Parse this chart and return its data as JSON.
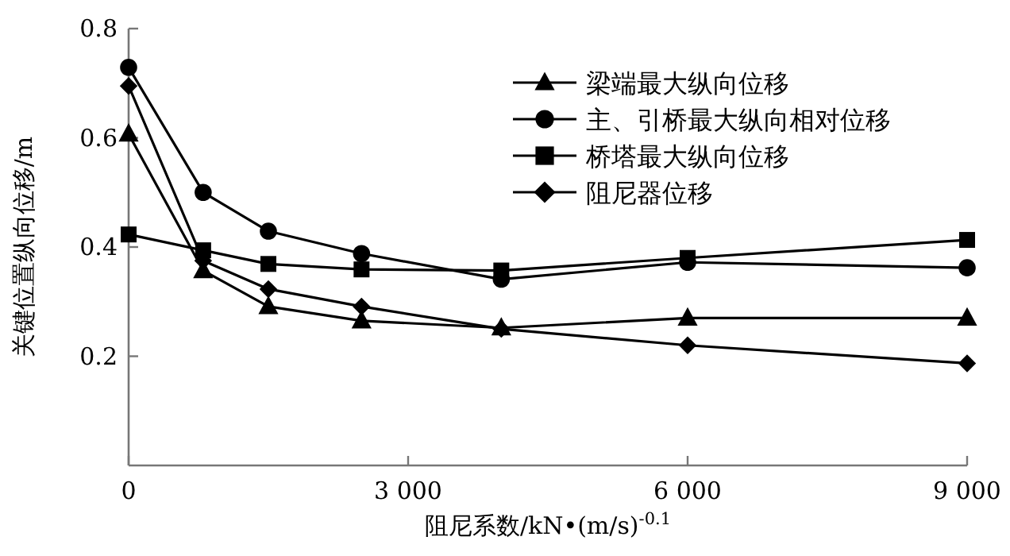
{
  "chart_data": {
    "type": "line",
    "xlabel": "阻尼系数/kN•(m/s)$^{-0.1}$",
    "ylabel": "关键位置纵向位移/m",
    "x": [
      0,
      800,
      1500,
      2500,
      4000,
      6000,
      9000
    ],
    "xlim": [
      0,
      9000
    ],
    "ylim": [
      0,
      0.8
    ],
    "xticks": [
      0,
      {
        "value": 3000,
        "label": "3 000"
      },
      {
        "value": 6000,
        "label": "6 000"
      },
      {
        "value": 9000,
        "label": "9 000"
      }
    ],
    "yticks": [
      0.2,
      0.4,
      0.6,
      0.8
    ],
    "legend": "top right",
    "grid": false,
    "line_style": "solid",
    "series": [
      {
        "name": "梁端最大纵向位移",
        "color": "#000000",
        "marker": "triangle",
        "values": [
          0.607,
          0.357,
          0.291,
          0.265,
          0.252,
          0.27,
          0.27
        ]
      },
      {
        "name": "主、引桥最大纵向相对位移",
        "color": "#000000",
        "marker": "circle",
        "values": [
          0.729,
          0.5,
          0.429,
          0.388,
          0.341,
          0.372,
          0.362
        ]
      },
      {
        "name": "桥塔最大纵向位移",
        "color": "#000000",
        "marker": "square",
        "values": [
          0.423,
          0.394,
          0.369,
          0.359,
          0.357,
          0.38,
          0.413
        ]
      },
      {
        "name": "阻尼器位移",
        "color": "#000000",
        "marker": "diamond",
        "values": [
          0.695,
          0.375,
          0.323,
          0.291,
          0.25,
          0.22,
          0.187
        ]
      }
    ]
  }
}
